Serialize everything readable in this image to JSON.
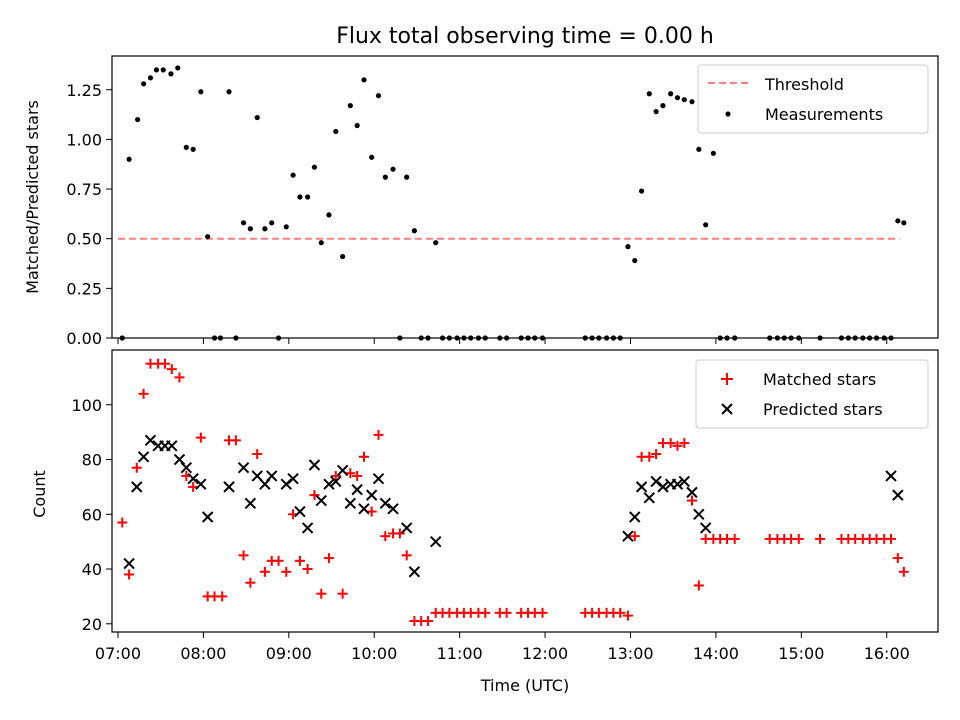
{
  "title": "Flux total observing time = 0.00 h",
  "xlabel": "Time (UTC)",
  "x_tick_labels": [
    "07:00",
    "08:00",
    "09:00",
    "10:00",
    "11:00",
    "12:00",
    "13:00",
    "14:00",
    "15:00",
    "16:00"
  ],
  "colors": {
    "threshold": "#ff8080",
    "measurements": "#000000",
    "matched": "#ff0000",
    "predicted": "#000000"
  },
  "chart_data": [
    {
      "type": "scatter",
      "ylabel": "Matched/Predicted stars",
      "ylim": [
        0,
        1.42
      ],
      "xlim": [
        6.93,
        16.6
      ],
      "y_ticks": [
        0,
        0.25,
        0.5,
        0.75,
        1.0,
        1.25
      ],
      "y_tick_labels": [
        "0.00",
        "0.25",
        "0.50",
        "0.75",
        "1.00",
        "1.25"
      ],
      "legend_position": "top-right",
      "threshold": {
        "name": "Threshold",
        "value": 0.5,
        "x_range": [
          7.0,
          16.15
        ]
      },
      "series": [
        {
          "name": "Measurements",
          "points": [
            [
              7.05,
              0
            ],
            [
              7.13,
              0.9
            ],
            [
              7.23,
              1.1
            ],
            [
              7.3,
              1.28
            ],
            [
              7.38,
              1.31
            ],
            [
              7.45,
              1.35
            ],
            [
              7.53,
              1.35
            ],
            [
              7.62,
              1.33
            ],
            [
              7.7,
              1.36
            ],
            [
              7.8,
              0.96
            ],
            [
              7.88,
              0.95
            ],
            [
              7.97,
              1.24
            ],
            [
              8.05,
              0.51
            ],
            [
              8.13,
              0
            ],
            [
              8.2,
              0
            ],
            [
              8.3,
              1.24
            ],
            [
              8.38,
              0
            ],
            [
              8.47,
              0.58
            ],
            [
              8.55,
              0.55
            ],
            [
              8.63,
              1.11
            ],
            [
              8.72,
              0.55
            ],
            [
              8.8,
              0.58
            ],
            [
              8.88,
              0
            ],
            [
              8.97,
              0.56
            ],
            [
              9.05,
              0.82
            ],
            [
              9.13,
              0.71
            ],
            [
              9.22,
              0.71
            ],
            [
              9.3,
              0.86
            ],
            [
              9.38,
              0.48
            ],
            [
              9.47,
              0.62
            ],
            [
              9.55,
              1.04
            ],
            [
              9.63,
              0.41
            ],
            [
              9.72,
              1.17
            ],
            [
              9.8,
              1.07
            ],
            [
              9.88,
              1.3
            ],
            [
              9.97,
              0.91
            ],
            [
              10.05,
              1.22
            ],
            [
              10.13,
              0.81
            ],
            [
              10.22,
              0.85
            ],
            [
              10.3,
              0
            ],
            [
              10.38,
              0.81
            ],
            [
              10.47,
              0.54
            ],
            [
              10.55,
              0
            ],
            [
              10.63,
              0
            ],
            [
              10.72,
              0.48
            ],
            [
              10.8,
              0
            ],
            [
              10.88,
              0
            ],
            [
              10.97,
              0
            ],
            [
              11.05,
              0
            ],
            [
              11.13,
              0
            ],
            [
              11.22,
              0
            ],
            [
              11.3,
              0
            ],
            [
              11.47,
              0
            ],
            [
              11.55,
              0
            ],
            [
              11.72,
              0
            ],
            [
              11.8,
              0
            ],
            [
              11.88,
              0
            ],
            [
              11.97,
              0
            ],
            [
              12.47,
              0
            ],
            [
              12.55,
              0
            ],
            [
              12.63,
              0
            ],
            [
              12.72,
              0
            ],
            [
              12.8,
              0
            ],
            [
              12.88,
              0
            ],
            [
              12.97,
              0.46
            ],
            [
              13.05,
              0.39
            ],
            [
              13.13,
              0.74
            ],
            [
              13.22,
              1.23
            ],
            [
              13.3,
              1.14
            ],
            [
              13.38,
              1.17
            ],
            [
              13.47,
              1.23
            ],
            [
              13.55,
              1.21
            ],
            [
              13.63,
              1.2
            ],
            [
              13.72,
              1.19
            ],
            [
              13.8,
              0.95
            ],
            [
              13.88,
              0.57
            ],
            [
              13.97,
              0.93
            ],
            [
              14.05,
              0
            ],
            [
              14.13,
              0
            ],
            [
              14.22,
              0
            ],
            [
              14.63,
              0
            ],
            [
              14.72,
              0
            ],
            [
              14.8,
              0
            ],
            [
              14.88,
              0
            ],
            [
              14.97,
              0
            ],
            [
              15.22,
              0
            ],
            [
              15.47,
              0
            ],
            [
              15.55,
              0
            ],
            [
              15.63,
              0
            ],
            [
              15.72,
              0
            ],
            [
              15.8,
              0
            ],
            [
              15.88,
              0
            ],
            [
              15.97,
              0
            ],
            [
              16.05,
              0
            ],
            [
              16.13,
              0.59
            ],
            [
              16.2,
              0.58
            ]
          ]
        }
      ]
    },
    {
      "type": "scatter",
      "ylabel": "Count",
      "ylim": [
        17,
        120
      ],
      "xlim": [
        6.93,
        16.6
      ],
      "y_ticks": [
        20,
        40,
        60,
        80,
        100
      ],
      "y_tick_labels": [
        "20",
        "40",
        "60",
        "80",
        "100"
      ],
      "legend_position": "top-right",
      "series": [
        {
          "name": "Matched stars",
          "marker": "plus",
          "points": [
            [
              7.05,
              57
            ],
            [
              7.13,
              38
            ],
            [
              7.22,
              77
            ],
            [
              7.3,
              104
            ],
            [
              7.38,
              115
            ],
            [
              7.47,
              115
            ],
            [
              7.55,
              115
            ],
            [
              7.63,
              113
            ],
            [
              7.72,
              110
            ],
            [
              7.8,
              74
            ],
            [
              7.88,
              70
            ],
            [
              7.97,
              88
            ],
            [
              8.05,
              30
            ],
            [
              8.13,
              30
            ],
            [
              8.22,
              30
            ],
            [
              8.3,
              87
            ],
            [
              8.38,
              87
            ],
            [
              8.47,
              45
            ],
            [
              8.55,
              35
            ],
            [
              8.63,
              82
            ],
            [
              8.72,
              39
            ],
            [
              8.8,
              43
            ],
            [
              8.88,
              43
            ],
            [
              8.97,
              39
            ],
            [
              9.05,
              60
            ],
            [
              9.13,
              43
            ],
            [
              9.22,
              40
            ],
            [
              9.3,
              67
            ],
            [
              9.38,
              31
            ],
            [
              9.47,
              44
            ],
            [
              9.55,
              74
            ],
            [
              9.63,
              31
            ],
            [
              9.72,
              75
            ],
            [
              9.8,
              74
            ],
            [
              9.88,
              81
            ],
            [
              9.97,
              61
            ],
            [
              10.05,
              89
            ],
            [
              10.13,
              52
            ],
            [
              10.22,
              53
            ],
            [
              10.3,
              53
            ],
            [
              10.38,
              45
            ],
            [
              10.47,
              21
            ],
            [
              10.55,
              21
            ],
            [
              10.63,
              21
            ],
            [
              10.72,
              24
            ],
            [
              10.8,
              24
            ],
            [
              10.88,
              24
            ],
            [
              10.97,
              24
            ],
            [
              11.05,
              24
            ],
            [
              11.13,
              24
            ],
            [
              11.22,
              24
            ],
            [
              11.3,
              24
            ],
            [
              11.47,
              24
            ],
            [
              11.55,
              24
            ],
            [
              11.72,
              24
            ],
            [
              11.8,
              24
            ],
            [
              11.88,
              24
            ],
            [
              11.97,
              24
            ],
            [
              12.47,
              24
            ],
            [
              12.55,
              24
            ],
            [
              12.63,
              24
            ],
            [
              12.72,
              24
            ],
            [
              12.8,
              24
            ],
            [
              12.88,
              24
            ],
            [
              12.97,
              23
            ],
            [
              13.05,
              52
            ],
            [
              13.13,
              81
            ],
            [
              13.22,
              81
            ],
            [
              13.3,
              82
            ],
            [
              13.38,
              86
            ],
            [
              13.47,
              86
            ],
            [
              13.55,
              85
            ],
            [
              13.63,
              86
            ],
            [
              13.72,
              65
            ],
            [
              13.8,
              34
            ],
            [
              13.88,
              51
            ],
            [
              13.97,
              51
            ],
            [
              14.05,
              51
            ],
            [
              14.13,
              51
            ],
            [
              14.22,
              51
            ],
            [
              14.63,
              51
            ],
            [
              14.72,
              51
            ],
            [
              14.8,
              51
            ],
            [
              14.88,
              51
            ],
            [
              14.97,
              51
            ],
            [
              15.22,
              51
            ],
            [
              15.47,
              51
            ],
            [
              15.55,
              51
            ],
            [
              15.63,
              51
            ],
            [
              15.72,
              51
            ],
            [
              15.8,
              51
            ],
            [
              15.88,
              51
            ],
            [
              15.97,
              51
            ],
            [
              16.05,
              51
            ],
            [
              16.13,
              44
            ],
            [
              16.2,
              39
            ]
          ]
        },
        {
          "name": "Predicted stars",
          "marker": "x",
          "points": [
            [
              7.13,
              42
            ],
            [
              7.22,
              70
            ],
            [
              7.3,
              81
            ],
            [
              7.38,
              87
            ],
            [
              7.47,
              85
            ],
            [
              7.55,
              85
            ],
            [
              7.63,
              85
            ],
            [
              7.72,
              80
            ],
            [
              7.8,
              77
            ],
            [
              7.88,
              73
            ],
            [
              7.97,
              71
            ],
            [
              8.05,
              59
            ],
            [
              8.3,
              70
            ],
            [
              8.47,
              77
            ],
            [
              8.55,
              64
            ],
            [
              8.63,
              74
            ],
            [
              8.72,
              71
            ],
            [
              8.8,
              74
            ],
            [
              8.97,
              71
            ],
            [
              9.05,
              73
            ],
            [
              9.13,
              61
            ],
            [
              9.22,
              55
            ],
            [
              9.3,
              78
            ],
            [
              9.38,
              65
            ],
            [
              9.47,
              71
            ],
            [
              9.55,
              72
            ],
            [
              9.63,
              76
            ],
            [
              9.72,
              64
            ],
            [
              9.8,
              69
            ],
            [
              9.88,
              62
            ],
            [
              9.97,
              67
            ],
            [
              10.05,
              73
            ],
            [
              10.13,
              64
            ],
            [
              10.22,
              62
            ],
            [
              10.38,
              55
            ],
            [
              10.47,
              39
            ],
            [
              10.72,
              50
            ],
            [
              12.97,
              52
            ],
            [
              13.05,
              59
            ],
            [
              13.13,
              70
            ],
            [
              13.22,
              66
            ],
            [
              13.3,
              72
            ],
            [
              13.38,
              70
            ],
            [
              13.47,
              71
            ],
            [
              13.55,
              71
            ],
            [
              13.63,
              72
            ],
            [
              13.72,
              68
            ],
            [
              13.8,
              60
            ],
            [
              13.88,
              55
            ],
            [
              16.05,
              74
            ],
            [
              16.13,
              67
            ]
          ]
        }
      ]
    }
  ]
}
